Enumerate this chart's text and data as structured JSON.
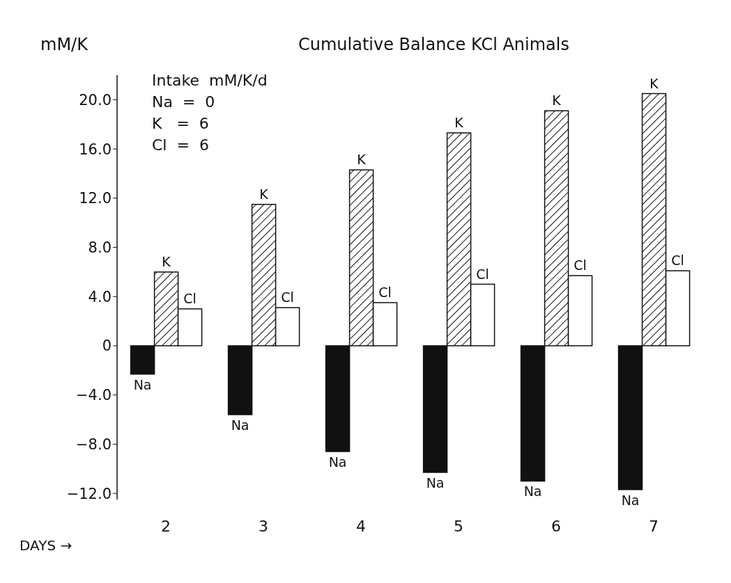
{
  "chart_data": {
    "type": "bar",
    "title": "Cumulative Balance KCl Animals",
    "ylabel": "mM/K",
    "xlabel": "DAYS →",
    "categories": [
      "2",
      "3",
      "4",
      "5",
      "6",
      "7"
    ],
    "series": [
      {
        "name": "Na",
        "color": "#111111",
        "values": [
          -2.3,
          -5.6,
          -8.6,
          -10.3,
          -11.0,
          -11.7
        ]
      },
      {
        "name": "K",
        "color": "#111111",
        "values": [
          6.0,
          11.5,
          14.3,
          17.3,
          19.1,
          20.5
        ]
      },
      {
        "name": "Cl",
        "color": "#ffffff",
        "values": [
          3.0,
          3.1,
          3.5,
          5.0,
          5.7,
          6.1
        ]
      }
    ],
    "ylim": [
      -12.5,
      22
    ],
    "yticks": [
      {
        "value": -12,
        "label": "−12.0"
      },
      {
        "value": -8,
        "label": "−8.0"
      },
      {
        "value": -4,
        "label": "−4.0"
      },
      0,
      {
        "value": 4,
        "label": "4.0"
      },
      {
        "value": 8,
        "label": "8.0"
      },
      {
        "value": 12,
        "label": "12.0"
      },
      {
        "value": 16,
        "label": "16.0"
      },
      {
        "value": 20,
        "label": "20.0"
      }
    ],
    "annotations": [
      "Intake  mM/K/d",
      "Na  =  0",
      "K   =  6",
      "Cl  =  6"
    ],
    "grid": false,
    "legend": false
  }
}
